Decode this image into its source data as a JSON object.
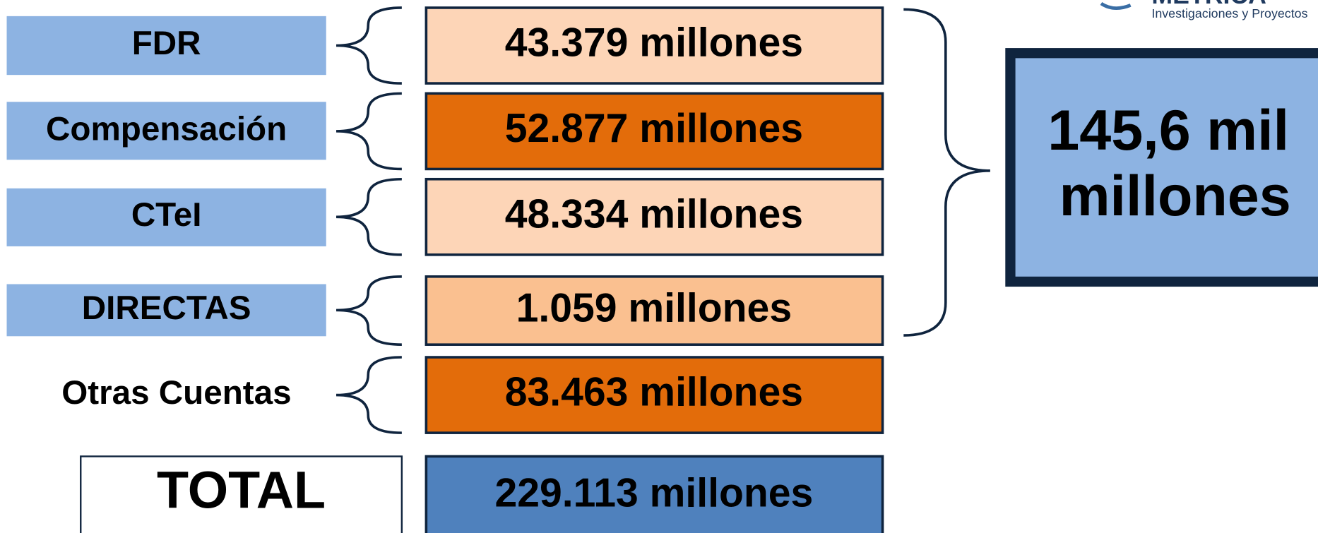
{
  "logo": {
    "name": "METRICA",
    "tagline": "Investigaciones y Proyectos"
  },
  "rows": [
    {
      "label": "FDR",
      "value": "43.379 millones"
    },
    {
      "label": "Compensación",
      "value": "52.877 millones"
    },
    {
      "label": "CTeI",
      "value": "48.334 millones"
    },
    {
      "label": "DIRECTAS",
      "value": "1.059 millones"
    },
    {
      "label": "Otras Cuentas",
      "value": "83.463 millones"
    }
  ],
  "total": {
    "label": "TOTAL",
    "value": "229.113 millones"
  },
  "summary": [
    "145,6 mil",
    "millones"
  ]
}
